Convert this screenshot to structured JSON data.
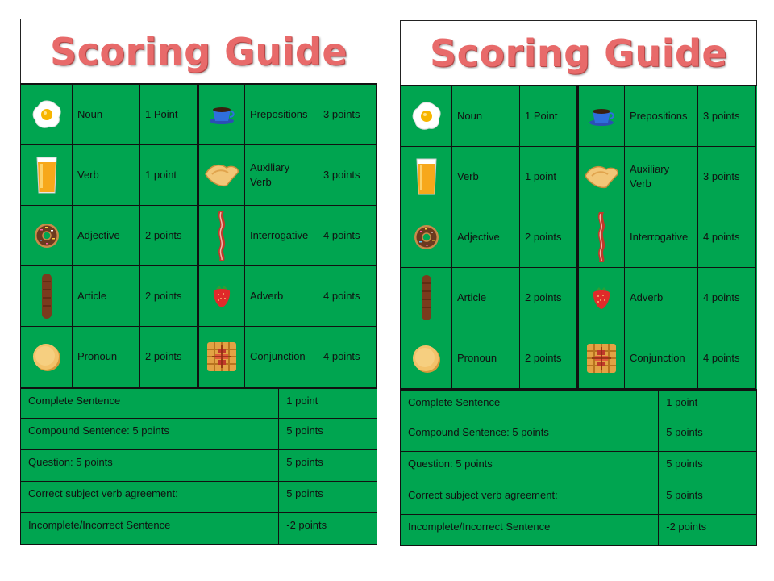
{
  "cards": [
    {
      "title": "Scoring Guide",
      "word_rows": [
        {
          "left": {
            "icon": "egg-icon",
            "label": "Noun",
            "points": "1 Point"
          },
          "right": {
            "icon": "coffee-cup-icon",
            "label": "Prepositions",
            "points": "3 points"
          }
        },
        {
          "left": {
            "icon": "orange-juice-icon",
            "label": "Verb",
            "points": "1 point"
          },
          "right": {
            "icon": "toast-icon",
            "label": "Auxiliary\n Verb",
            "points": "3 points"
          }
        },
        {
          "left": {
            "icon": "donut-icon",
            "label": "Adjective",
            "points": "2 points"
          },
          "right": {
            "icon": "bacon-icon",
            "label": "Interrogative",
            "points": "4 points"
          }
        },
        {
          "left": {
            "icon": "sausage-icon",
            "label": "Article",
            "points": "2 points"
          },
          "right": {
            "icon": "strawberry-icon",
            "label": "Adverb",
            "points": "4 points"
          }
        },
        {
          "left": {
            "icon": "pancakes-icon",
            "label": "Pronoun",
            "points": "2 points"
          },
          "right": {
            "icon": "waffle-icon",
            "label": "Conjunction",
            "points": "4 points"
          }
        }
      ],
      "sentence_rows": [
        {
          "label": "Complete Sentence",
          "points": "1 point"
        },
        {
          "label": "Compound Sentence: 5 points",
          "points": "5 points"
        },
        {
          "label": "Question: 5 points",
          "points": "5 points"
        },
        {
          "label": "Correct subject verb agreement:",
          "points": " 5 points"
        },
        {
          "label": "Incomplete/Incorrect Sentence",
          "points": "-2 points"
        }
      ]
    },
    {
      "title": "Scoring Guide",
      "word_rows": [
        {
          "left": {
            "icon": "egg-icon",
            "label": "Noun",
            "points": "1 Point"
          },
          "right": {
            "icon": "coffee-cup-icon",
            "label": "Prepositions",
            "points": "3 points"
          }
        },
        {
          "left": {
            "icon": "orange-juice-icon",
            "label": "Verb",
            "points": "1 point"
          },
          "right": {
            "icon": "toast-icon",
            "label": "Auxiliary\n Verb",
            "points": "3 points"
          }
        },
        {
          "left": {
            "icon": "donut-icon",
            "label": "Adjective",
            "points": "2 points"
          },
          "right": {
            "icon": "bacon-icon",
            "label": "Interrogative",
            "points": "4 points"
          }
        },
        {
          "left": {
            "icon": "sausage-icon",
            "label": "Article",
            "points": "2 points"
          },
          "right": {
            "icon": "strawberry-icon",
            "label": "Adverb",
            "points": "4 points"
          }
        },
        {
          "left": {
            "icon": "pancakes-icon",
            "label": "Pronoun",
            "points": "2 points"
          },
          "right": {
            "icon": "waffle-icon",
            "label": "Conjunction",
            "points": "4 points"
          }
        }
      ],
      "sentence_rows": [
        {
          "label": "Complete Sentence",
          "points": "1 point"
        },
        {
          "label": "Compound Sentence: 5 points",
          "points": "5 points"
        },
        {
          "label": "Question: 5 points",
          "points": "5 points"
        },
        {
          "label": "Correct subject verb agreement:",
          "points": " 5 points"
        },
        {
          "label": "Incomplete/Incorrect Sentence",
          "points": "-2 points"
        }
      ]
    }
  ],
  "colors": {
    "table_green": "#00a550",
    "title_red": "#e86a6a"
  }
}
